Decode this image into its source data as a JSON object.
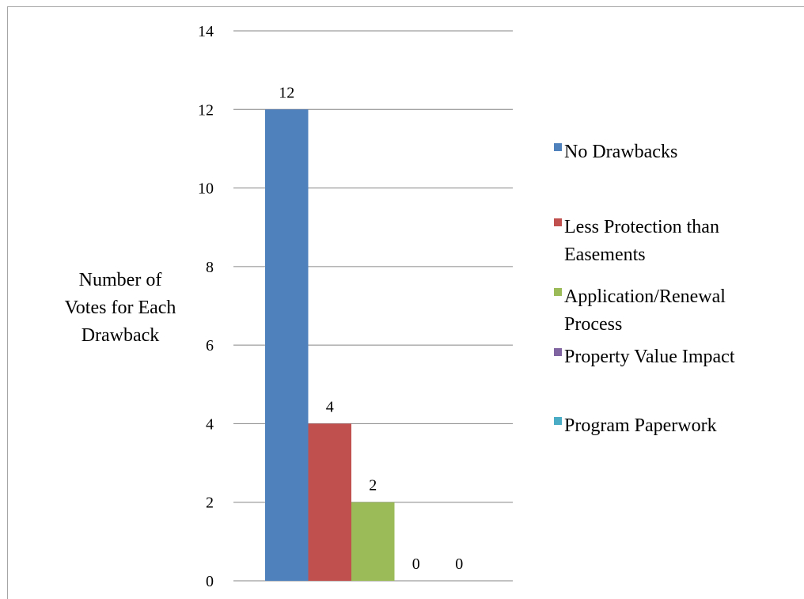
{
  "chart_data": {
    "type": "bar",
    "title": "",
    "xlabel": "",
    "ylabel": "Number of Votes for Each Drawback",
    "ylabel_lines": [
      "Number of",
      "Votes for Each",
      "Drawback"
    ],
    "ylim": [
      0,
      14
    ],
    "yticks": [
      0,
      2,
      4,
      6,
      8,
      10,
      12,
      14
    ],
    "grid": true,
    "legend_position": "right",
    "series": [
      {
        "name": "No Drawbacks",
        "name_lines": [
          "No Drawbacks"
        ],
        "value": 12,
        "color": "#4f81bd"
      },
      {
        "name": "Less Protection than Easements",
        "name_lines": [
          "Less Protection than",
          "Easements"
        ],
        "value": 4,
        "color": "#c0504d"
      },
      {
        "name": "Application/Renewal Process",
        "name_lines": [
          "Application/Renewal",
          "Process"
        ],
        "value": 2,
        "color": "#9bbb59"
      },
      {
        "name": "Property Value Impact",
        "name_lines": [
          "Property Value Impact"
        ],
        "value": 0,
        "color": "#8064a2"
      },
      {
        "name": "Program Paperwork",
        "name_lines": [
          "Program Paperwork"
        ],
        "value": 0,
        "color": "#4bacc6"
      }
    ]
  }
}
